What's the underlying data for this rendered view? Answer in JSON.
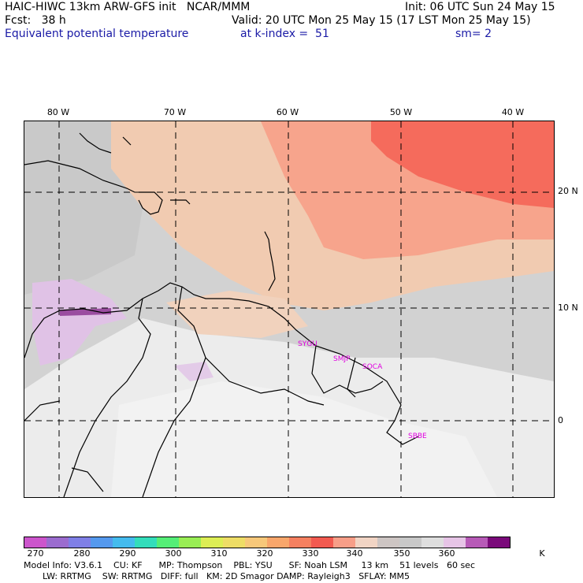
{
  "header": {
    "line1_left": "HAIC-HIWC 13km ARW-GFS init   NCAR/MMM",
    "line1_right": "Init: 06 UTC Sun 24 May 15",
    "line2_left": "Fcst:   38 h",
    "line2_right": "Valid: 20 UTC Mon 25 May 15 (17 LST Mon 25 May 15)",
    "line3_left": "Equivalent potential temperature",
    "line3_mid": "at k-index =  51",
    "line3_right": "sm= 2"
  },
  "map": {
    "longitude_labels": [
      "80 W",
      "70 W",
      "60 W",
      "50 W",
      "40 W"
    ],
    "latitude_labels": [
      "20 N",
      "10 N",
      "0"
    ],
    "station_labels": [
      "SYGU",
      "SMJP",
      "SOCA",
      "SBBE"
    ]
  },
  "colorbar": {
    "colors": [
      "#cc55cc",
      "#9b6ccf",
      "#7f7fe6",
      "#5599ee",
      "#44bbee",
      "#33ddbb",
      "#55ee77",
      "#99ee55",
      "#ddee55",
      "#eedd66",
      "#f7c87a",
      "#f8a66b",
      "#f58060",
      "#f25a50",
      "#f79e88",
      "#f1d4c4",
      "#cdc5c3",
      "#c8c8c8",
      "#dedede",
      "#e6c4e6",
      "#b75ab7",
      "#7a0a7a"
    ],
    "tick_labels": [
      "270",
      "280",
      "290",
      "300",
      "310",
      "320",
      "330",
      "340",
      "350",
      "360",
      "K"
    ]
  },
  "footer": {
    "line1": "Model Info: V3.6.1    CU: KF      MP: Thompson    PBL: YSU      SF: Noah LSM     13 km    51 levels   60 sec",
    "line2": "LW: RRTMG    SW: RRTMG   DIFF: full   KM: 2D Smagor DAMP: Rayleigh3   SFLAY: MM5"
  }
}
